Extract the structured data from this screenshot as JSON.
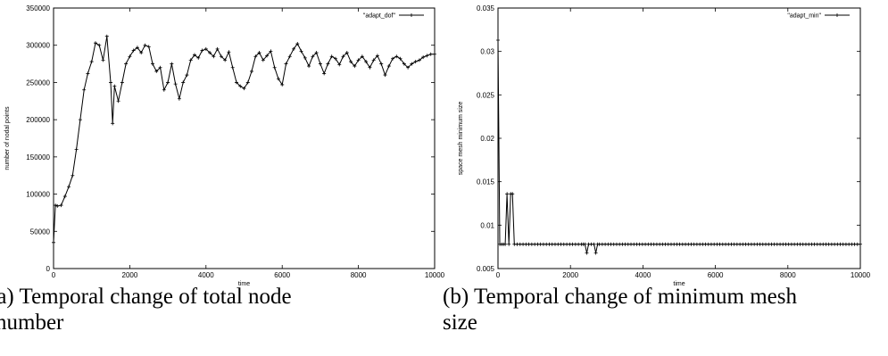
{
  "chart_data": [
    {
      "type": "line",
      "xlabel": "time",
      "ylabel": "number of nodal points",
      "xlim": [
        0,
        10000
      ],
      "ylim": [
        0,
        350000
      ],
      "xticks": [
        "0",
        "2000",
        "4000",
        "6000",
        "8000",
        "10000"
      ],
      "yticks": [
        "0",
        "50000",
        "100000",
        "150000",
        "200000",
        "250000",
        "300000",
        "350000"
      ],
      "grid": false,
      "legend_position": "top-right",
      "series": [
        {
          "name": "\"adapt_dof\"",
          "x": [
            0,
            50,
            100,
            200,
            300,
            400,
            500,
            600,
            700,
            800,
            900,
            1000,
            1100,
            1200,
            1300,
            1400,
            1500,
            1550,
            1600,
            1700,
            1800,
            1900,
            2000,
            2100,
            2200,
            2300,
            2400,
            2500,
            2600,
            2700,
            2800,
            2900,
            3000,
            3100,
            3200,
            3300,
            3400,
            3500,
            3600,
            3700,
            3800,
            3900,
            4000,
            4100,
            4200,
            4300,
            4400,
            4500,
            4600,
            4700,
            4800,
            4900,
            5000,
            5100,
            5200,
            5300,
            5400,
            5500,
            5600,
            5700,
            5800,
            5900,
            6000,
            6100,
            6200,
            6300,
            6400,
            6500,
            6600,
            6700,
            6800,
            6900,
            7000,
            7100,
            7200,
            7300,
            7400,
            7500,
            7600,
            7700,
            7800,
            7900,
            8000,
            8100,
            8200,
            8300,
            8400,
            8500,
            8600,
            8700,
            8800,
            8900,
            9000,
            9100,
            9200,
            9300,
            9400,
            9500,
            9600,
            9700,
            9800,
            9900,
            10000
          ],
          "y": [
            35000,
            85000,
            84000,
            85000,
            97000,
            110000,
            125000,
            160000,
            200000,
            240000,
            262000,
            278000,
            303000,
            300000,
            280000,
            312000,
            250000,
            195000,
            245000,
            225000,
            250000,
            275000,
            285000,
            293000,
            297000,
            290000,
            300000,
            298000,
            275000,
            265000,
            270000,
            240000,
            250000,
            275000,
            248000,
            228000,
            250000,
            260000,
            280000,
            287000,
            283000,
            293000,
            295000,
            290000,
            285000,
            295000,
            285000,
            280000,
            291000,
            270000,
            250000,
            245000,
            242000,
            250000,
            265000,
            285000,
            290000,
            280000,
            286000,
            292000,
            270000,
            255000,
            247000,
            275000,
            285000,
            295000,
            302000,
            292000,
            283000,
            272000,
            285000,
            290000,
            275000,
            262000,
            275000,
            285000,
            282000,
            274000,
            285000,
            290000,
            278000,
            272000,
            280000,
            285000,
            278000,
            270000,
            280000,
            286000,
            275000,
            260000,
            272000,
            282000,
            285000,
            282000,
            275000,
            270000,
            275000,
            278000,
            280000,
            284000,
            286000,
            288000,
            288000
          ]
        }
      ]
    },
    {
      "type": "line",
      "xlabel": "time",
      "ylabel": "space mesh minimum size",
      "xlim": [
        0,
        10000
      ],
      "ylim": [
        0.005,
        0.035
      ],
      "xticks": [
        "0",
        "2000",
        "4000",
        "6000",
        "8000",
        "10000"
      ],
      "yticks": [
        "0.005",
        "0.01",
        "0.015",
        "0.02",
        "0.025",
        "0.03",
        "0.035"
      ],
      "grid": false,
      "legend_position": "top-right",
      "series": [
        {
          "name": "\"adapt_min\"",
          "x": [
            0,
            50,
            100,
            150,
            200,
            250,
            300,
            350,
            400,
            450,
            2300,
            2350,
            2400,
            2450,
            2500,
            2650,
            2700,
            2750,
            2800,
            10000
          ],
          "y": [
            0.0313,
            0.0078,
            0.0078,
            0.0078,
            0.0078,
            0.0136,
            0.0078,
            0.0136,
            0.0136,
            0.0078,
            0.0078,
            0.0078,
            0.0078,
            0.0068,
            0.0078,
            0.0078,
            0.0068,
            0.0078,
            0.0078,
            0.0078
          ]
        }
      ]
    }
  ],
  "captions": {
    "a_line1": "(a)  Temporal   change   of   total   node",
    "a_line2": "number",
    "b_line1": "(b) Temporal change of minimum mesh",
    "b_line2": "size"
  }
}
